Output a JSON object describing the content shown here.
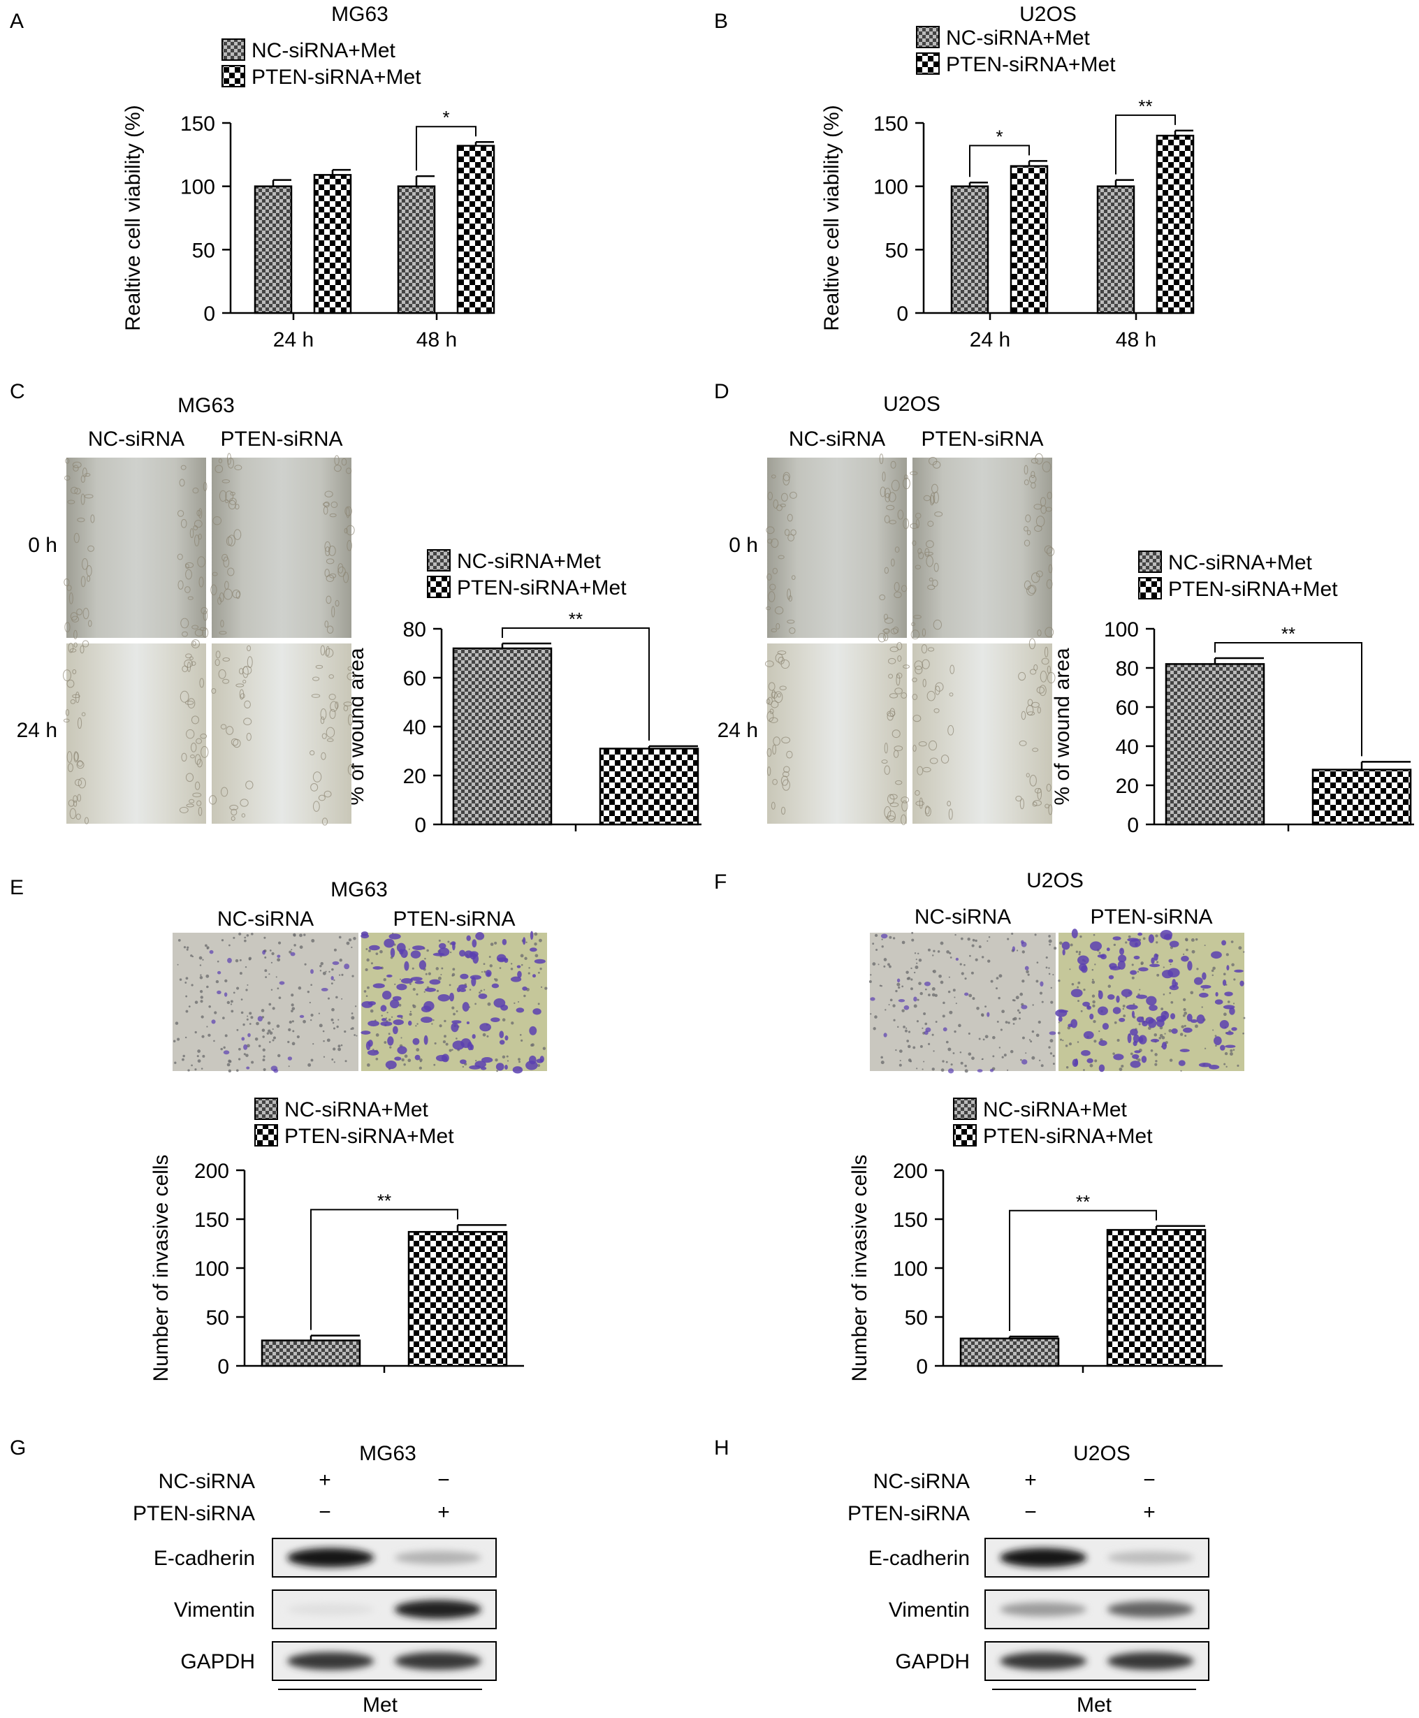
{
  "series_names": {
    "nc": "NC-siRNA+Met",
    "pten": "PTEN-siRNA+Met"
  },
  "colors": {
    "ink": "#000000",
    "bar_nc": "#9a9a9a",
    "bar_pten": "#444444",
    "background": "#ffffff"
  },
  "chart_data": [
    {
      "id": "A",
      "panel_label": "A",
      "type": "bar",
      "title": "MG63",
      "ylabel": "Realtive cell viability (%)",
      "ylim": [
        0,
        150
      ],
      "yticks": [
        0,
        50,
        100,
        150
      ],
      "categories": [
        "24 h",
        "48 h"
      ],
      "series": [
        {
          "name": "NC-siRNA+Met",
          "values": [
            100,
            100
          ],
          "errors": [
            5,
            8
          ]
        },
        {
          "name": "PTEN-siRNA+Met",
          "values": [
            109,
            132
          ],
          "errors": [
            4,
            3
          ]
        }
      ],
      "significance": [
        {
          "category_index": 1,
          "label": "*"
        }
      ],
      "legend": "top"
    },
    {
      "id": "B",
      "panel_label": "B",
      "type": "bar",
      "title": "U2OS",
      "ylabel": "Realtive cell viability (%)",
      "ylim": [
        0,
        150
      ],
      "yticks": [
        0,
        50,
        100,
        150
      ],
      "categories": [
        "24 h",
        "48 h"
      ],
      "series": [
        {
          "name": "NC-siRNA+Met",
          "values": [
            100,
            100
          ],
          "errors": [
            3,
            5
          ]
        },
        {
          "name": "PTEN-siRNA+Met",
          "values": [
            116,
            140
          ],
          "errors": [
            4,
            4
          ]
        }
      ],
      "significance": [
        {
          "category_index": 0,
          "label": "*"
        },
        {
          "category_index": 1,
          "label": "**"
        }
      ],
      "legend": "top"
    },
    {
      "id": "C",
      "panel_label": "C",
      "type": "bar",
      "title": "MG63",
      "ylabel": "% of wound area",
      "ylim": [
        0,
        80
      ],
      "yticks": [
        0,
        20,
        40,
        60,
        80
      ],
      "categories": [
        ""
      ],
      "series": [
        {
          "name": "NC-siRNA+Met",
          "values": [
            72
          ],
          "errors": [
            2
          ]
        },
        {
          "name": "PTEN-siRNA+Met",
          "values": [
            31
          ],
          "errors": [
            1
          ]
        }
      ],
      "significance": [
        {
          "category_index": 0,
          "label": "**"
        }
      ],
      "legend": "top-left"
    },
    {
      "id": "D",
      "panel_label": "D",
      "type": "bar",
      "title": "U2OS",
      "ylabel": "% of wound area",
      "ylim": [
        0,
        100
      ],
      "yticks": [
        0,
        20,
        40,
        60,
        80,
        100
      ],
      "categories": [
        ""
      ],
      "series": [
        {
          "name": "NC-siRNA+Met",
          "values": [
            82
          ],
          "errors": [
            3
          ]
        },
        {
          "name": "PTEN-siRNA+Met",
          "values": [
            28
          ],
          "errors": [
            4
          ]
        }
      ],
      "significance": [
        {
          "category_index": 0,
          "label": "**"
        }
      ],
      "legend": "top-left"
    },
    {
      "id": "E",
      "panel_label": "E",
      "type": "bar",
      "title": "MG63",
      "ylabel": "Number of invasive cells",
      "ylim": [
        0,
        200
      ],
      "yticks": [
        0,
        50,
        100,
        150,
        200
      ],
      "categories": [
        ""
      ],
      "series": [
        {
          "name": "NC-siRNA+Met",
          "values": [
            26
          ],
          "errors": [
            5
          ]
        },
        {
          "name": "PTEN-siRNA+Met",
          "values": [
            137
          ],
          "errors": [
            7
          ]
        }
      ],
      "significance": [
        {
          "category_index": 0,
          "label": "**"
        }
      ],
      "legend": "top"
    },
    {
      "id": "F",
      "panel_label": "F",
      "type": "bar",
      "title": "U2OS",
      "ylabel": "Number of invasive cells",
      "ylim": [
        0,
        200
      ],
      "yticks": [
        0,
        50,
        100,
        150,
        200
      ],
      "categories": [
        ""
      ],
      "series": [
        {
          "name": "NC-siRNA+Met",
          "values": [
            28
          ],
          "errors": [
            2
          ]
        },
        {
          "name": "PTEN-siRNA+Met",
          "values": [
            139
          ],
          "errors": [
            4
          ]
        }
      ],
      "significance": [
        {
          "category_index": 0,
          "label": "**"
        }
      ],
      "legend": "top"
    }
  ],
  "wound_panels": [
    {
      "id": "C",
      "col_labels": [
        "NC-siRNA",
        "PTEN-siRNA"
      ],
      "row_labels": [
        "0 h",
        "24 h"
      ]
    },
    {
      "id": "D",
      "col_labels": [
        "NC-siRNA",
        "PTEN-siRNA"
      ],
      "row_labels": [
        "0 h",
        "24 h"
      ]
    }
  ],
  "invasion_panels": [
    {
      "id": "E",
      "col_labels": [
        "NC-siRNA",
        "PTEN-siRNA"
      ]
    },
    {
      "id": "F",
      "col_labels": [
        "NC-siRNA",
        "PTEN-siRNA"
      ]
    }
  ],
  "blots": [
    {
      "id": "G",
      "panel_label": "G",
      "title": "MG63",
      "conditions": [
        {
          "label": "NC-siRNA",
          "signs": [
            "+",
            "−"
          ]
        },
        {
          "label": "PTEN-siRNA",
          "signs": [
            "−",
            "+"
          ]
        }
      ],
      "bands": [
        {
          "label": "E-cadherin",
          "intensity": [
            0.95,
            0.25
          ]
        },
        {
          "label": "Vimentin",
          "intensity": [
            0.05,
            0.9
          ]
        },
        {
          "label": "GAPDH",
          "intensity": [
            0.8,
            0.8
          ]
        }
      ],
      "treatment": "Met"
    },
    {
      "id": "H",
      "panel_label": "H",
      "title": "U2OS",
      "conditions": [
        {
          "label": "NC-siRNA",
          "signs": [
            "+",
            "−"
          ]
        },
        {
          "label": "PTEN-siRNA",
          "signs": [
            "−",
            "+"
          ]
        }
      ],
      "bands": [
        {
          "label": "E-cadherin",
          "intensity": [
            0.95,
            0.2
          ]
        },
        {
          "label": "Vimentin",
          "intensity": [
            0.35,
            0.6
          ]
        },
        {
          "label": "GAPDH",
          "intensity": [
            0.8,
            0.8
          ]
        }
      ],
      "treatment": "Met"
    }
  ]
}
